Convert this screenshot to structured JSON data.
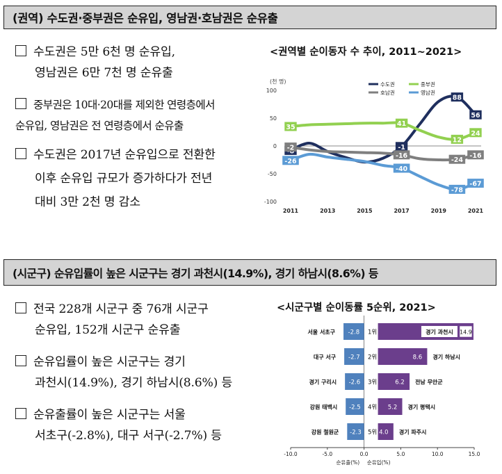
{
  "section1": {
    "header": "(권역) 수도권·중부권은 순유입, 영남권·호남권은 순유출",
    "bullets": [
      {
        "line1": "수도권은 5만 6천 명 순유입,",
        "line2": "영남권은 6만 7천 명 순유출"
      },
      {
        "line1": "중부권은 10대·20대를 제외한 연령층에서",
        "line2": "순유입, 영남권은 전 연령층에서 순유출"
      },
      {
        "line1": "수도권은 2017년 순유입으로 전환한",
        "line2": "이후 순유입 규모가 증가하다가 전년",
        "line3": "대비 3만 2천 명 감소"
      }
    ]
  },
  "section2": {
    "header": "(시군구) 순유입률이 높은 시군구는 경기 과천시(14.9%), 경기 하남시(8.6%) 등",
    "bullets": [
      {
        "line1": "전국 228개 시군구 중 76개 시군구",
        "line2": "순유입, 152개 시군구 순유출"
      },
      {
        "line1": "순유입률이 높은 시군구는 경기",
        "line2": "과천시(14.9%), 경기 하남시(8.6%) 등"
      },
      {
        "line1": "순유출률이 높은 시군구는 서울",
        "line2": "서초구(-2.8%), 대구 서구(-2.7%) 등"
      }
    ]
  },
  "chart_data": [
    {
      "type": "line",
      "title": "<권역별 순이동자 수 추이, 2011~2021>",
      "ylabel": "(천 명)",
      "x": [
        2011,
        2012,
        2013,
        2014,
        2015,
        2016,
        2017,
        2018,
        2019,
        2020,
        2021
      ],
      "x_ticks": [
        "2011",
        "2013",
        "2015",
        "2017",
        "2019",
        "2021"
      ],
      "y_ticks": [
        -100,
        -50,
        0,
        50,
        100
      ],
      "ylim": [
        -100,
        115
      ],
      "legend": [
        "수도권",
        "중부권",
        "호남권",
        "영남권"
      ],
      "series": [
        {
          "name": "수도권",
          "color": "#1f2f5e",
          "values": [
            -8,
            5,
            -10,
            -21,
            -29,
            -22,
            -1,
            40,
            80,
            88,
            56
          ]
        },
        {
          "name": "중부권",
          "color": "#92d050",
          "values": [
            35,
            38,
            39,
            40,
            41,
            41,
            41,
            28,
            16,
            12,
            24
          ]
        },
        {
          "name": "호남권",
          "color": "#7f7f7f",
          "values": [
            -2,
            -7,
            -10,
            -11,
            -12,
            -13,
            -16,
            -23,
            -25,
            -24,
            -16
          ]
        },
        {
          "name": "영남권",
          "color": "#5b9bd5",
          "values": [
            -26,
            -15,
            -20,
            -24,
            -28,
            -35,
            -40,
            -55,
            -70,
            -78,
            -67
          ]
        }
      ],
      "data_labels": [
        {
          "series": "수도권",
          "x": 2011,
          "text": "-8"
        },
        {
          "series": "수도권",
          "x": 2017,
          "text": "-1"
        },
        {
          "series": "수도권",
          "x": 2020,
          "text": "88"
        },
        {
          "series": "수도권",
          "x": 2021,
          "text": "56"
        },
        {
          "series": "중부권",
          "x": 2011,
          "text": "35"
        },
        {
          "series": "중부권",
          "x": 2017,
          "text": "41"
        },
        {
          "series": "중부권",
          "x": 2020,
          "text": "12"
        },
        {
          "series": "중부권",
          "x": 2021,
          "text": "24"
        },
        {
          "series": "호남권",
          "x": 2011,
          "text": "-2"
        },
        {
          "series": "호남권",
          "x": 2017,
          "text": "-16"
        },
        {
          "series": "호남권",
          "x": 2020,
          "text": "-24"
        },
        {
          "series": "호남권",
          "x": 2021,
          "text": "-16"
        },
        {
          "series": "영남권",
          "x": 2011,
          "text": "-26"
        },
        {
          "series": "영남권",
          "x": 2017,
          "text": "-40"
        },
        {
          "series": "영남권",
          "x": 2020,
          "text": "-78"
        },
        {
          "series": "영남권",
          "x": 2021,
          "text": "-67"
        }
      ]
    },
    {
      "type": "bar",
      "title": "<시군구별 순이동률 5순위, 2021>",
      "ranks": [
        "1위",
        "2위",
        "3위",
        "4위",
        "5위"
      ],
      "xlim": [
        -10,
        15
      ],
      "x_ticks": [
        -10.0,
        -5.0,
        0.0,
        5.0,
        10.0,
        15.0
      ],
      "x_tick_labels": [
        "-10.0",
        "-5.0",
        "0.0",
        "5.0",
        "10.0",
        "15.0"
      ],
      "series": [
        {
          "name": "순유출(%)",
          "color": "#4f81bd",
          "categories": [
            "서울 서초구",
            "대구 서구",
            "경기 구리시",
            "강원 태백시",
            "강원 철원군"
          ],
          "values": [
            -2.8,
            -2.7,
            -2.6,
            -2.5,
            -2.3
          ]
        },
        {
          "name": "순유입(%)",
          "color": "#6b3e8c",
          "categories": [
            "경기 과천시",
            "경기 하남시",
            "전남 무안군",
            "경기 평택시",
            "경기 파주시"
          ],
          "values": [
            14.9,
            8.6,
            6.2,
            5.2,
            4.0
          ]
        }
      ],
      "value_labels_out": [
        "-2.8",
        "-2.7",
        "-2.6",
        "-2.5",
        "-2.3"
      ],
      "value_labels_in": [
        "14.9",
        "8.6",
        "6.2",
        "5.2",
        "4.0"
      ]
    }
  ]
}
